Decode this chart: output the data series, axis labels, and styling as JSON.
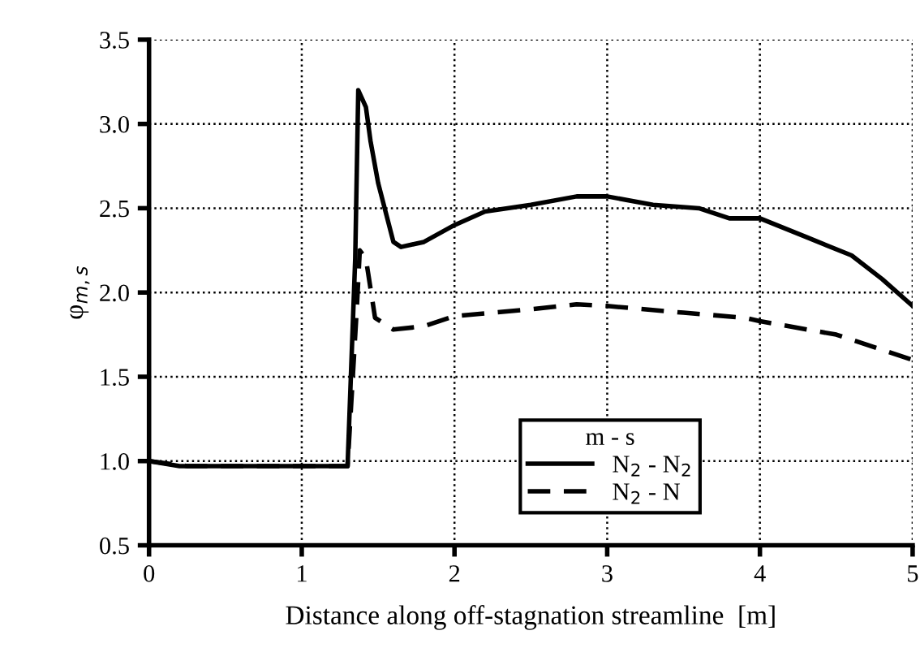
{
  "chart_data": {
    "type": "line",
    "xlabel": "Distance along off-stagnation streamline  [m]",
    "ylabel": "φ$_{m,s}$",
    "legend_title": "m - s",
    "legend": "bottom",
    "grid": true,
    "xlim": [
      0,
      5
    ],
    "ylim": [
      0.5,
      3.5
    ],
    "xticks": [
      0,
      1,
      2,
      3,
      4,
      5
    ],
    "yticks": [
      {
        "value": 0.5,
        "label": "0.5"
      },
      {
        "value": 1.0,
        "label": "1.0"
      },
      {
        "value": 1.5,
        "label": "1.5"
      },
      {
        "value": 2.0,
        "label": "2.0"
      },
      {
        "value": 2.5,
        "label": "2.5"
      },
      {
        "value": 3.0,
        "label": "3.0"
      },
      {
        "value": 3.5,
        "label": "3.5"
      }
    ],
    "series": [
      {
        "name": "N$_{2}$ - N$_{2}$",
        "color": "#000000",
        "line_style": "solid",
        "x": [
          0,
          0.2,
          1.3,
          1.35,
          1.37,
          1.42,
          1.45,
          1.5,
          1.6,
          1.65,
          1.8,
          2.0,
          2.2,
          2.5,
          2.8,
          3.0,
          3.3,
          3.6,
          3.8,
          4.0,
          4.3,
          4.6,
          4.8,
          5.0
        ],
        "values": [
          1.0,
          0.97,
          0.97,
          2.2,
          3.2,
          3.1,
          2.9,
          2.65,
          2.3,
          2.27,
          2.3,
          2.4,
          2.48,
          2.52,
          2.57,
          2.57,
          2.52,
          2.5,
          2.44,
          2.44,
          2.33,
          2.22,
          2.08,
          1.92
        ]
      },
      {
        "name": "N$_{2}$ - N",
        "color": "#000000",
        "line_style": "dashed",
        "x": [
          0,
          0.25,
          1.3,
          1.36,
          1.38,
          1.42,
          1.48,
          1.6,
          1.8,
          2.0,
          2.5,
          2.8,
          3.0,
          3.5,
          3.9,
          4.0,
          4.5,
          5.0
        ],
        "values": [
          1.0,
          0.97,
          0.97,
          1.9,
          2.25,
          2.2,
          1.85,
          1.78,
          1.8,
          1.86,
          1.9,
          1.93,
          1.92,
          1.88,
          1.85,
          1.83,
          1.75,
          1.6
        ]
      }
    ]
  }
}
